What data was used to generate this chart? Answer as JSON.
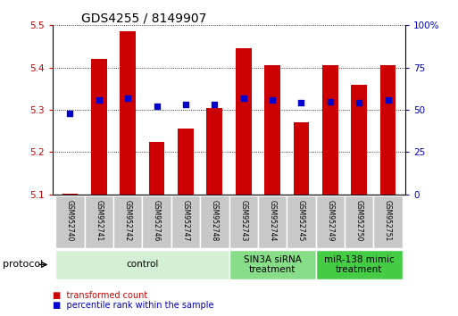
{
  "title": "GDS4255 / 8149907",
  "samples": [
    "GSM952740",
    "GSM952741",
    "GSM952742",
    "GSM952746",
    "GSM952747",
    "GSM952748",
    "GSM952743",
    "GSM952744",
    "GSM952745",
    "GSM952749",
    "GSM952750",
    "GSM952751"
  ],
  "red_values": [
    5.101,
    5.42,
    5.485,
    5.225,
    5.255,
    5.305,
    5.445,
    5.405,
    5.27,
    5.405,
    5.36,
    5.405
  ],
  "blue_percentile": [
    48,
    56,
    57,
    52,
    53,
    53,
    57,
    56,
    54,
    55,
    54,
    56
  ],
  "ylim_left": [
    5.1,
    5.5
  ],
  "ylim_right": [
    0,
    100
  ],
  "yticks_left": [
    5.1,
    5.2,
    5.3,
    5.4,
    5.5
  ],
  "yticks_right": [
    0,
    25,
    50,
    75,
    100
  ],
  "ytick_labels_right": [
    "0",
    "25",
    "50",
    "75",
    "100%"
  ],
  "bar_color": "#cc0000",
  "square_color": "#0000cc",
  "baseline": 5.1,
  "groups": [
    {
      "label": "control",
      "start": 0,
      "end": 6,
      "color": "#d4f0d4"
    },
    {
      "label": "SIN3A siRNA\ntreatment",
      "start": 6,
      "end": 9,
      "color": "#88dd88"
    },
    {
      "label": "miR-138 mimic\ntreatment",
      "start": 9,
      "end": 12,
      "color": "#44cc44"
    }
  ],
  "legend_items": [
    {
      "label": "transformed count",
      "color": "#cc0000"
    },
    {
      "label": "percentile rank within the sample",
      "color": "#0000cc"
    }
  ],
  "protocol_label": "protocol",
  "bar_width": 0.55,
  "tick_label_color_left": "#cc0000",
  "tick_label_color_right": "#0000cc",
  "bg_color": "#ffffff",
  "sample_box_color": "#c8c8c8",
  "title_fontsize": 10,
  "tick_fontsize": 7.5,
  "sample_fontsize": 5.5,
  "group_fontsize": 7.5,
  "legend_fontsize": 7
}
